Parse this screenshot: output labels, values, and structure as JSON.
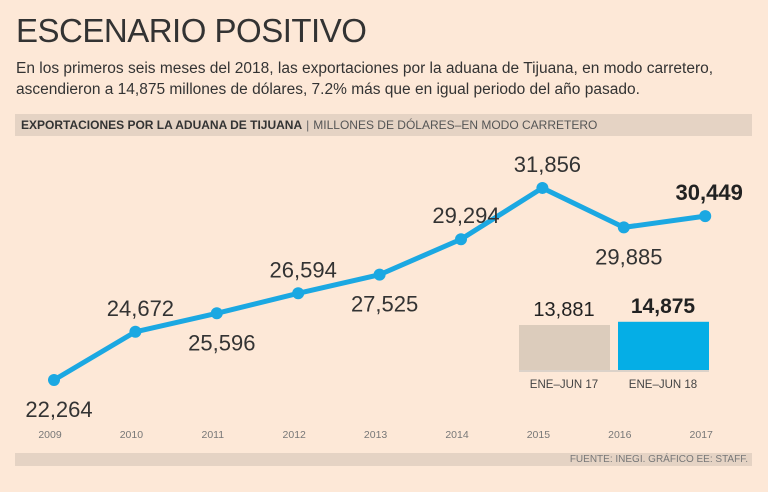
{
  "title": "ESCENARIO POSITIVO",
  "subtitle": "En los primeros seis meses del 2018, las exportaciones por la aduana de Tijuana, en modo carretero, ascendieron a 14,875 millones de dólares, 7.2% más que en igual periodo del año pasado.",
  "chart_data": [
    {
      "type": "line",
      "title": "EXPORTACIONES POR LA ADUANA DE TIJUANA",
      "subtitle": "MILLONES DE DÓLARES–EN MODO CARRETERO",
      "categories": [
        "2009",
        "2010",
        "2011",
        "2012",
        "2013",
        "2014",
        "2015",
        "2016",
        "2017"
      ],
      "values": [
        22264,
        24672,
        25596,
        26594,
        27525,
        29294,
        31856,
        29885,
        30449
      ],
      "labels": [
        "22,264",
        "24,672",
        "25,596",
        "26,594",
        "27,525",
        "29,294",
        "31,856",
        "29,885",
        "30,449"
      ],
      "color": "#1ba8e2"
    },
    {
      "type": "bar",
      "categories": [
        "ENE–JUN 17",
        "ENE–JUN 18"
      ],
      "values": [
        13881,
        14875
      ],
      "labels": [
        "13,881",
        "14,875"
      ],
      "colors": [
        "#dcccbc",
        "#05aee6"
      ]
    }
  ],
  "source": "FUENTE: INEGI. GRÁFICO EE: STAFF."
}
